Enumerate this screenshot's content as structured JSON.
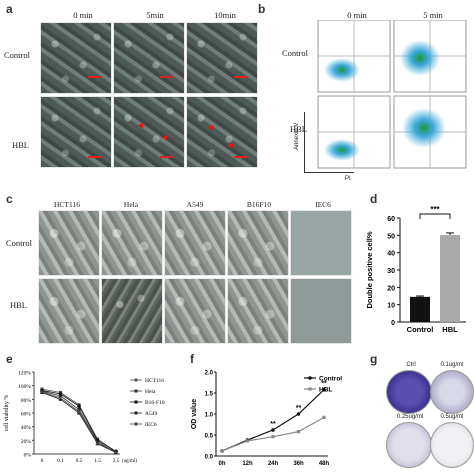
{
  "panels": {
    "a": "a",
    "b": "b",
    "c": "c",
    "d": "d",
    "e": "e",
    "f": "f",
    "g": "g"
  },
  "panel_a": {
    "times": [
      "0 min",
      "5min",
      "10min"
    ],
    "rows": [
      "Control",
      "HBL"
    ]
  },
  "panel_b": {
    "times": [
      "0 min",
      "5 min"
    ],
    "rows": [
      "Control",
      "HBL"
    ],
    "ylabel": "Annexin V",
    "xlabel": "PI"
  },
  "panel_c": {
    "cells": [
      "HCT116",
      "Hela",
      "A549",
      "B16F10",
      "IEC6"
    ],
    "rows": [
      "Control",
      "HBL"
    ]
  },
  "panel_g": {
    "labels": [
      "Ctrl",
      "0.1ug/ml",
      "0.25ug/ml",
      "0.5ug/ml"
    ]
  },
  "chart_data": [
    {
      "panel": "d",
      "type": "bar",
      "categories": [
        "Control",
        "HBL"
      ],
      "values": [
        14.5,
        50.2
      ],
      "errors": [
        0.5,
        1.2
      ],
      "colors": [
        "#111111",
        "#aaaaaa"
      ],
      "ylabel": "Double positive cell%",
      "ylim": [
        0,
        60
      ],
      "yticks": [
        "0",
        "10",
        "20",
        "30",
        "40",
        "50",
        "60"
      ],
      "significance": "***"
    },
    {
      "panel": "e",
      "type": "line",
      "ylabel": "cell viability %",
      "xunit": "(ug/ml)",
      "x": [
        "0",
        "0.1",
        "0.5",
        "1.5",
        "2.5"
      ],
      "yticks": [
        "0%",
        "20%",
        "40%",
        "60%",
        "80%",
        "100%",
        "120%"
      ],
      "ylim": [
        0,
        120
      ],
      "legend_position": "right",
      "series": [
        {
          "name": "HCT116",
          "marker": "square",
          "values": [
            95,
            90,
            72,
            22,
            3
          ]
        },
        {
          "name": "Hela",
          "marker": "square",
          "values": [
            92,
            85,
            65,
            18,
            2
          ]
        },
        {
          "name": "B16-F10",
          "marker": "circle",
          "values": [
            93,
            88,
            70,
            20,
            4
          ]
        },
        {
          "name": "A549",
          "marker": "triangle",
          "values": [
            90,
            80,
            60,
            15,
            2
          ]
        },
        {
          "name": "IEC6",
          "marker": "x",
          "values": [
            91,
            82,
            62,
            16,
            3
          ]
        }
      ]
    },
    {
      "panel": "f",
      "type": "line",
      "ylabel": "OD value",
      "x": [
        "0h",
        "12h",
        "24h",
        "36h",
        "48h"
      ],
      "yticks": [
        "0.0",
        "0.5",
        "1.0",
        "1.5",
        "2.0"
      ],
      "ylim": [
        0,
        2.0
      ],
      "legend_position": "top-right",
      "series": [
        {
          "name": "Control",
          "color": "#111111",
          "values": [
            0.12,
            0.38,
            0.62,
            1.0,
            1.58
          ]
        },
        {
          "name": "HBL",
          "color": "#888888",
          "values": [
            0.12,
            0.36,
            0.46,
            0.58,
            0.92
          ]
        }
      ],
      "annotations": [
        "**",
        "**",
        "**"
      ]
    }
  ]
}
